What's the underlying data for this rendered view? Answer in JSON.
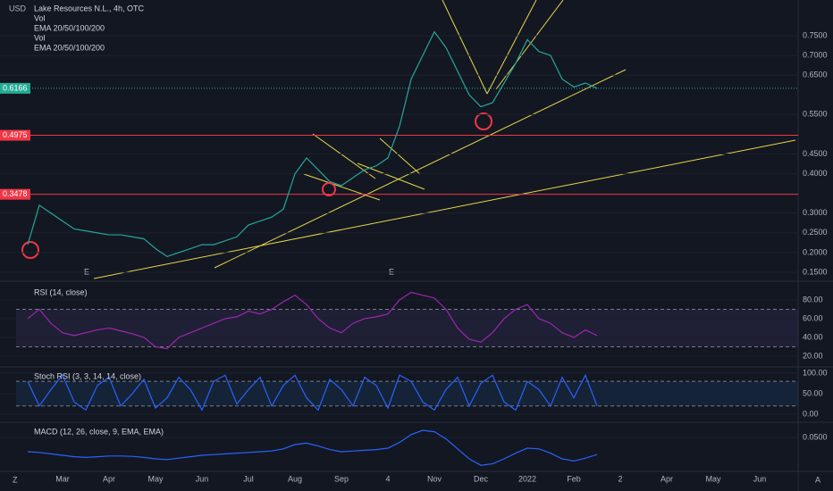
{
  "currency": "USD",
  "corner_labels": {
    "left": "Z",
    "right": "A"
  },
  "events": [
    "E",
    "E"
  ],
  "chart_data": [
    {
      "type": "line",
      "title": "Lake Resources N.L., 4h, OTC",
      "legend": [
        "Vol",
        "EMA 20/50/100/200",
        "Vol",
        "EMA 20/50/100/200"
      ],
      "color": "#26a69a",
      "categories": [
        null,
        null,
        null,
        null,
        "Mar",
        null,
        null,
        null,
        "Apr",
        null,
        null,
        null,
        "May",
        null,
        null,
        null,
        "Jun",
        null,
        null,
        null,
        "Jul",
        null,
        null,
        null,
        "Aug",
        null,
        null,
        null,
        "Sep",
        null,
        null,
        null,
        "4",
        null,
        null,
        null,
        "Nov",
        null,
        null,
        null,
        "Dec",
        null,
        null,
        null,
        "2022",
        null,
        null,
        null,
        "Feb",
        null,
        null,
        null,
        "2",
        null,
        null,
        null,
        "Apr",
        null,
        null,
        null,
        "May",
        null,
        null,
        null,
        "Jun",
        null,
        null
      ],
      "values": [
        null,
        0.22,
        0.32,
        0.3,
        0.28,
        0.26,
        0.255,
        0.25,
        0.245,
        0.245,
        0.24,
        0.235,
        0.21,
        0.19,
        0.2,
        0.21,
        0.22,
        0.22,
        0.23,
        0.24,
        0.27,
        0.28,
        0.29,
        0.31,
        0.4,
        0.44,
        0.41,
        0.38,
        0.37,
        0.39,
        0.41,
        0.42,
        0.44,
        0.52,
        0.64,
        0.7,
        0.76,
        0.72,
        0.66,
        0.6,
        0.57,
        0.58,
        0.63,
        0.68,
        0.74,
        0.71,
        0.7,
        0.64,
        0.62,
        0.63,
        0.6166,
        null,
        null,
        null,
        null,
        null,
        null,
        null,
        null,
        null,
        null,
        null,
        null,
        null,
        null,
        null,
        null
      ],
      "ylim": [
        0.1274,
        0.8406
      ],
      "yticks": [
        {
          "value": 0.75,
          "label": "0.7500"
        },
        {
          "value": 0.7,
          "label": "0.7000"
        },
        {
          "value": 0.65,
          "label": "0.6500"
        },
        {
          "value": 0.55,
          "label": "0.5500"
        },
        {
          "value": 0.45,
          "label": "0.4500"
        },
        {
          "value": 0.4,
          "label": "0.4000"
        },
        {
          "value": 0.3,
          "label": "0.3000"
        },
        {
          "value": 0.25,
          "label": "0.2500"
        },
        {
          "value": 0.2,
          "label": "0.2000"
        },
        {
          "value": 0.15,
          "label": "0.1500"
        }
      ],
      "levels": [
        {
          "value": 0.4975,
          "label": "0.4975",
          "color": "#f23645"
        },
        {
          "value": 0.3478,
          "label": "0.3478",
          "color": "#f23645"
        }
      ],
      "last": {
        "value": 0.6166,
        "label": "0.6166",
        "color": "#22ab94"
      }
    },
    {
      "type": "line",
      "title": "RSI (14, close)",
      "color": "#9c27b0",
      "bands": [
        70,
        30
      ],
      "values": [
        null,
        60,
        70,
        55,
        45,
        42,
        45,
        48,
        50,
        47,
        44,
        40,
        30,
        28,
        40,
        45,
        50,
        55,
        60,
        62,
        68,
        65,
        70,
        78,
        85,
        75,
        60,
        50,
        45,
        55,
        60,
        62,
        65,
        80,
        88,
        85,
        82,
        70,
        50,
        38,
        35,
        45,
        60,
        70,
        75,
        60,
        55,
        45,
        40,
        48,
        42,
        null,
        null,
        null,
        null,
        null,
        null,
        null,
        null,
        null,
        null,
        null,
        null,
        null,
        null,
        null,
        null
      ],
      "ylim": [
        9.5,
        97.1
      ],
      "yticks": [
        {
          "value": 80,
          "label": "80.00"
        },
        {
          "value": 60,
          "label": "60.00"
        },
        {
          "value": 40,
          "label": "40.00"
        },
        {
          "value": 20,
          "label": "20.00"
        }
      ]
    },
    {
      "type": "line",
      "title": "Stoch RSI (3, 3, 14, 14, close)",
      "color": "#2962ff",
      "bands": [
        80,
        20
      ],
      "values": [
        null,
        80,
        20,
        60,
        95,
        30,
        10,
        70,
        90,
        20,
        50,
        85,
        15,
        40,
        90,
        60,
        10,
        80,
        95,
        25,
        60,
        90,
        20,
        70,
        95,
        40,
        10,
        85,
        60,
        20,
        90,
        70,
        15,
        95,
        80,
        30,
        10,
        60,
        90,
        20,
        75,
        95,
        30,
        10,
        80,
        60,
        20,
        90,
        40,
        95,
        20,
        null,
        null,
        null,
        null,
        null,
        null,
        null,
        null,
        null,
        null,
        null,
        null,
        null,
        null,
        null,
        null
      ],
      "ylim": [
        -17.4,
        113
      ],
      "yticks": [
        {
          "value": 100,
          "label": "100.00"
        },
        {
          "value": 50,
          "label": "50.00"
        },
        {
          "value": 0,
          "label": "0.00"
        }
      ]
    },
    {
      "type": "line",
      "title": "MACD (12, 26, close, 9, EMA, EMA)",
      "color": "#2962ff",
      "values": [
        null,
        0.01,
        0.008,
        0.004,
        0.0,
        -0.004,
        -0.006,
        -0.004,
        -0.002,
        -0.002,
        -0.003,
        -0.006,
        -0.01,
        -0.012,
        -0.008,
        -0.004,
        0.0,
        0.002,
        0.004,
        0.006,
        0.008,
        0.01,
        0.012,
        0.018,
        0.03,
        0.034,
        0.026,
        0.016,
        0.01,
        0.012,
        0.014,
        0.016,
        0.02,
        0.036,
        0.058,
        0.07,
        0.066,
        0.046,
        0.018,
        -0.01,
        -0.028,
        -0.024,
        -0.01,
        0.006,
        0.02,
        0.018,
        0.006,
        -0.01,
        -0.016,
        -0.008,
        0.002,
        null,
        null,
        null,
        null,
        null,
        null,
        null,
        null,
        null,
        null,
        null,
        null,
        null,
        null,
        null,
        null
      ],
      "ylim": [
        -0.0425,
        0.09
      ],
      "yticks": [
        {
          "value": 0.05,
          "label": "0.0500"
        }
      ]
    }
  ]
}
